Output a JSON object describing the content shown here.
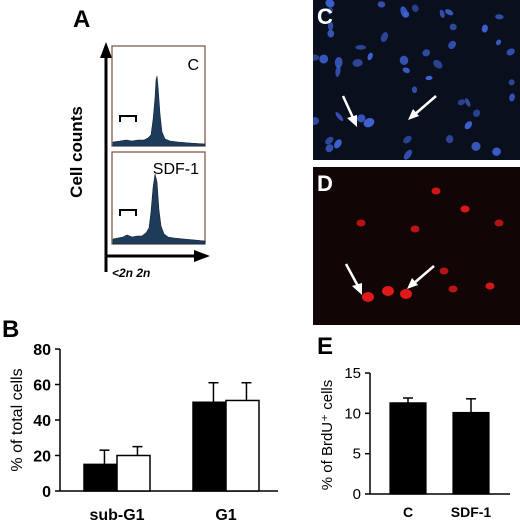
{
  "panels": {
    "a": {
      "letter": "A"
    },
    "b": {
      "letter": "B"
    },
    "c": {
      "letter": "C"
    },
    "d": {
      "letter": "D"
    },
    "e": {
      "letter": "E"
    }
  },
  "colors": {
    "histogram_fill": "#1f3b5a",
    "bar_black": "#000000",
    "bar_white": "#ffffff",
    "dapi_bg": "#0a0f1e",
    "dapi_nuclei": "#3f63d8",
    "brdu_bg": "#120505",
    "brdu_nuclei": "#e01818"
  },
  "chart_data": [
    {
      "panel": "A",
      "type": "histogram",
      "ylabel": "Cell counts",
      "xlabel": "<2n 2n",
      "series": [
        {
          "name": "C"
        },
        {
          "name": "SDF-1"
        }
      ]
    },
    {
      "panel": "B",
      "type": "bar",
      "categories": [
        "sub-G1",
        "G1"
      ],
      "series": [
        {
          "values": [
            15,
            50
          ],
          "errors": [
            8,
            11
          ],
          "color": "#000000"
        },
        {
          "values": [
            20,
            51
          ],
          "errors": [
            5,
            10
          ],
          "color": "#ffffff"
        }
      ],
      "ylabel": "% of total cells",
      "ylim": [
        0,
        80
      ],
      "yticks": [
        "0",
        "20",
        "40",
        "60",
        "80"
      ]
    },
    {
      "panel": "E",
      "type": "bar",
      "categories": [
        "C",
        "SDF-1"
      ],
      "values": [
        11.3,
        10.1
      ],
      "errors": [
        0.6,
        1.7
      ],
      "ylabel": "% of BrdU⁺ cells",
      "ylim": [
        0,
        15
      ],
      "yticks": [
        "0",
        "5",
        "10",
        "15"
      ]
    }
  ]
}
